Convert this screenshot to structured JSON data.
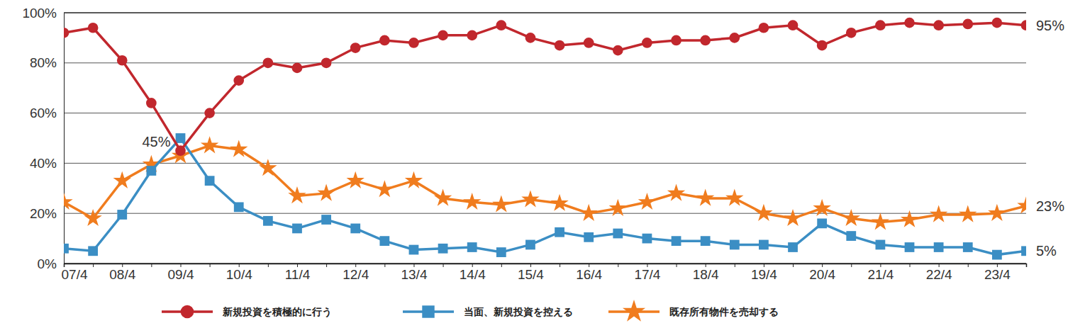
{
  "chart_data": {
    "type": "line",
    "categories": [
      "07/4",
      null,
      "08/4",
      null,
      "09/4",
      null,
      "10/4",
      null,
      "11/4",
      null,
      "12/4",
      null,
      "13/4",
      null,
      "14/4",
      null,
      "15/4",
      null,
      "16/4",
      null,
      "17/4",
      null,
      "18/4",
      null,
      "19/4",
      null,
      "20/4",
      null,
      "21/4",
      null,
      "22/4",
      null,
      "23/4",
      null
    ],
    "series": [
      {
        "name": "新規投資を積極的に行う",
        "color": "#c1272d",
        "marker": "circle",
        "values": [
          92,
          94,
          81,
          64,
          45,
          60,
          73,
          80,
          78,
          80,
          86,
          89,
          88,
          91,
          91,
          95,
          90,
          87,
          88,
          85,
          88,
          89,
          89,
          90,
          94,
          95,
          87,
          92,
          95,
          96,
          95,
          95.5,
          96,
          95
        ],
        "value_labels": [
          null,
          null,
          null,
          null,
          "45%",
          null,
          null,
          null,
          null,
          null,
          null,
          null,
          null,
          null,
          null,
          null,
          null,
          null,
          null,
          null,
          null,
          null,
          null,
          null,
          null,
          null,
          null,
          null,
          null,
          null,
          null,
          null,
          null,
          "95%"
        ]
      },
      {
        "name": "当面、新規投資を控える",
        "color": "#3b8ec4",
        "marker": "square",
        "values": [
          6,
          5,
          19.5,
          37,
          50,
          33,
          22.5,
          17,
          14,
          17.5,
          14,
          9,
          5.5,
          6,
          6.5,
          4.5,
          7.5,
          12.5,
          10.5,
          12,
          10,
          9,
          9,
          7.5,
          7.5,
          6.5,
          16,
          11,
          7.5,
          6.5,
          6.5,
          6.5,
          3.5,
          5
        ],
        "value_labels": [
          null,
          null,
          null,
          null,
          null,
          null,
          null,
          null,
          null,
          null,
          null,
          null,
          null,
          null,
          null,
          null,
          null,
          null,
          null,
          null,
          null,
          null,
          null,
          null,
          null,
          null,
          null,
          null,
          null,
          null,
          null,
          null,
          null,
          "5%"
        ]
      },
      {
        "name": "既存所有物件を売却する",
        "color": "#f07c1e",
        "marker": "star",
        "values": [
          24.5,
          18,
          33,
          39.5,
          43,
          47,
          45.5,
          38,
          27,
          28,
          33,
          29.5,
          33,
          26,
          24.5,
          23.5,
          25.5,
          24,
          20,
          22,
          24.5,
          28,
          26,
          26,
          20,
          18,
          22,
          18,
          16.5,
          17.5,
          19.5,
          19.5,
          20,
          23
        ],
        "value_labels": [
          null,
          null,
          null,
          null,
          null,
          null,
          null,
          null,
          null,
          null,
          null,
          null,
          null,
          null,
          null,
          null,
          null,
          null,
          null,
          null,
          null,
          null,
          null,
          null,
          null,
          null,
          null,
          null,
          null,
          null,
          null,
          null,
          null,
          "23%"
        ]
      }
    ],
    "ylim": [
      0,
      100
    ],
    "yticks": [
      {
        "value": 0,
        "label": "0%"
      },
      {
        "value": 20,
        "label": "20%"
      },
      {
        "value": 40,
        "label": "40%"
      },
      {
        "value": 60,
        "label": "60%"
      },
      {
        "value": 80,
        "label": "80%"
      },
      {
        "value": 100,
        "label": "100%"
      }
    ],
    "grid": true,
    "legend": "bottom"
  }
}
